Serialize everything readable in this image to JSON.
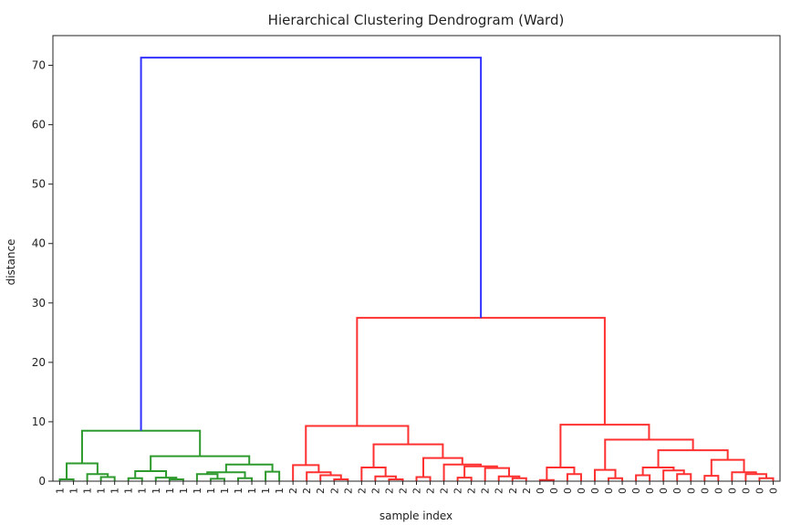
{
  "chart_data": {
    "type": "dendrogram",
    "title": "Hierarchical Clustering Dendrogram (Ward)",
    "xlabel": "sample index",
    "ylabel": "distance",
    "ylim": [
      0,
      75
    ],
    "yticks": [
      0,
      10,
      20,
      30,
      40,
      50,
      60,
      70
    ],
    "leaf_labels": [
      "1",
      "1",
      "1",
      "1",
      "1",
      "1",
      "1",
      "1",
      "1",
      "1",
      "1",
      "1",
      "1",
      "1",
      "1",
      "1",
      "1",
      "2",
      "2",
      "2",
      "2",
      "2",
      "2",
      "2",
      "2",
      "2",
      "2",
      "2",
      "2",
      "2",
      "2",
      "2",
      "2",
      "2",
      "2",
      "0",
      "0",
      "0",
      "0",
      "0",
      "0",
      "0",
      "0",
      "0",
      "0",
      "0",
      "0",
      "0",
      "0",
      "0",
      "0",
      "0",
      "0"
    ],
    "links": [
      {
        "left": 0,
        "right": 1,
        "height": 0.3,
        "color": "#2e9a2e"
      },
      {
        "left": 3,
        "right": 4,
        "height": 0.7,
        "color": "#2e9a2e"
      },
      {
        "left": 2,
        "right": 54,
        "height": 1.2,
        "color": "#2e9a2e"
      },
      {
        "left": 53,
        "right": 55,
        "height": 3.0,
        "color": "#2e9a2e"
      },
      {
        "left": 5,
        "right": 6,
        "height": 0.5,
        "color": "#2e9a2e"
      },
      {
        "left": 8,
        "right": 9,
        "height": 0.3,
        "color": "#2e9a2e"
      },
      {
        "left": 7,
        "right": 58,
        "height": 0.6,
        "color": "#2e9a2e"
      },
      {
        "left": 57,
        "right": 59,
        "height": 1.7,
        "color": "#2e9a2e"
      },
      {
        "left": 11,
        "right": 12,
        "height": 0.4,
        "color": "#2e9a2e"
      },
      {
        "left": 10,
        "right": 61,
        "height": 1.2,
        "color": "#2e9a2e"
      },
      {
        "left": 13,
        "right": 14,
        "height": 0.5,
        "color": "#2e9a2e"
      },
      {
        "left": 62,
        "right": 63,
        "height": 1.5,
        "color": "#2e9a2e"
      },
      {
        "left": 15,
        "right": 16,
        "height": 1.6,
        "color": "#2e9a2e"
      },
      {
        "left": 64,
        "right": 65,
        "height": 2.8,
        "color": "#2e9a2e"
      },
      {
        "left": 60,
        "right": 66,
        "height": 4.2,
        "color": "#2e9a2e"
      },
      {
        "left": 56,
        "right": 67,
        "height": 8.5,
        "color": "#2e9a2e"
      },
      {
        "left": 20,
        "right": 21,
        "height": 0.3,
        "color": "#ff3030"
      },
      {
        "left": 19,
        "right": 69,
        "height": 1.0,
        "color": "#ff3030"
      },
      {
        "left": 18,
        "right": 70,
        "height": 1.5,
        "color": "#ff3030"
      },
      {
        "left": 17,
        "right": 71,
        "height": 2.7,
        "color": "#ff3030"
      },
      {
        "left": 24,
        "right": 25,
        "height": 0.3,
        "color": "#ff3030"
      },
      {
        "left": 23,
        "right": 73,
        "height": 0.8,
        "color": "#ff3030"
      },
      {
        "left": 22,
        "right": 74,
        "height": 2.3,
        "color": "#ff3030"
      },
      {
        "left": 33,
        "right": 34,
        "height": 0.5,
        "color": "#ff3030"
      },
      {
        "left": 32,
        "right": 76,
        "height": 0.8,
        "color": "#ff3030"
      },
      {
        "left": 31,
        "right": 77,
        "height": 2.2,
        "color": "#ff3030"
      },
      {
        "left": 29,
        "right": 30,
        "height": 0.6,
        "color": "#ff3030"
      },
      {
        "left": 79,
        "right": 78,
        "height": 2.5,
        "color": "#ff3030"
      },
      {
        "left": 28,
        "right": 80,
        "height": 2.8,
        "color": "#ff3030"
      },
      {
        "left": 26,
        "right": 27,
        "height": 0.7,
        "color": "#ff3030"
      },
      {
        "left": 82,
        "right": 81,
        "height": 3.9,
        "color": "#ff3030"
      },
      {
        "left": 75,
        "right": 83,
        "height": 6.2,
        "color": "#ff3030"
      },
      {
        "left": 72,
        "right": 84,
        "height": 9.3,
        "color": "#ff3030"
      },
      {
        "left": 35,
        "right": 36,
        "height": 0.2,
        "color": "#ff3030"
      },
      {
        "left": 37,
        "right": 38,
        "height": 1.2,
        "color": "#ff3030"
      },
      {
        "left": 86,
        "right": 87,
        "height": 2.3,
        "color": "#ff3030"
      },
      {
        "left": 40,
        "right": 41,
        "height": 0.5,
        "color": "#ff3030"
      },
      {
        "left": 39,
        "right": 89,
        "height": 1.9,
        "color": "#ff3030"
      },
      {
        "left": 42,
        "right": 43,
        "height": 1.0,
        "color": "#ff3030"
      },
      {
        "left": 45,
        "right": 46,
        "height": 1.2,
        "color": "#ff3030"
      },
      {
        "left": 44,
        "right": 92,
        "height": 1.8,
        "color": "#ff3030"
      },
      {
        "left": 91,
        "right": 93,
        "height": 2.3,
        "color": "#ff3030"
      },
      {
        "left": 47,
        "right": 48,
        "height": 0.9,
        "color": "#ff3030"
      },
      {
        "left": 51,
        "right": 52,
        "height": 0.5,
        "color": "#ff3030"
      },
      {
        "left": 50,
        "right": 96,
        "height": 1.2,
        "color": "#ff3030"
      },
      {
        "left": 49,
        "right": 97,
        "height": 1.5,
        "color": "#ff3030"
      },
      {
        "left": 95,
        "right": 98,
        "height": 3.6,
        "color": "#ff3030"
      },
      {
        "left": 94,
        "right": 99,
        "height": 5.2,
        "color": "#ff3030"
      },
      {
        "left": 90,
        "right": 100,
        "height": 7.0,
        "color": "#ff3030"
      },
      {
        "left": 88,
        "right": 101,
        "height": 9.5,
        "color": "#ff3030"
      },
      {
        "left": 85,
        "right": 102,
        "height": 27.5,
        "color": "#ff3030"
      },
      {
        "left": 68,
        "right": 103,
        "height": 71.3,
        "color": "#3030ff"
      }
    ]
  }
}
